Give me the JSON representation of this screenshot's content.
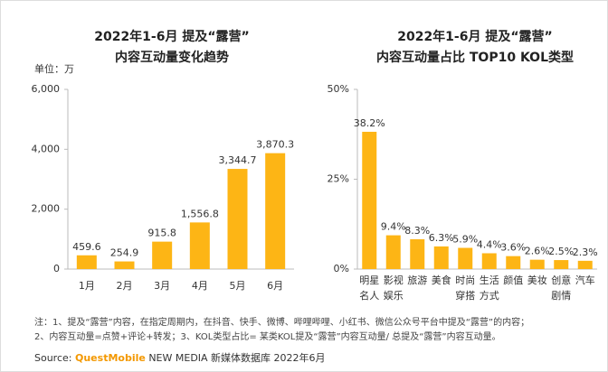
{
  "chart_data": [
    {
      "type": "bar",
      "title": "2022年1-6月 提及“露营”",
      "subtitle": "内容互动量变化趋势",
      "unit_label": "单位：万",
      "categories": [
        "1月",
        "2月",
        "3月",
        "4月",
        "5月",
        "6月"
      ],
      "values": [
        459.6,
        254.9,
        915.8,
        1556.8,
        3344.7,
        3870.3
      ],
      "value_labels": [
        "459.6",
        "254.9",
        "915.8",
        "1,556.8",
        "3,344.7",
        "3,870.3"
      ],
      "color": "#fdb515",
      "ylim": [
        0,
        6000
      ],
      "yticks": [
        0,
        {
          "value": 2000,
          "label": "2,000"
        },
        {
          "value": 4000,
          "label": "4,000"
        },
        {
          "value": 6000,
          "label": "6,000"
        }
      ]
    },
    {
      "type": "bar",
      "title": "2022年1-6月 提及“露营”",
      "subtitle": "内容互动量占比 TOP10 KOL类型",
      "categories": [
        "明星名人",
        "影视娱乐",
        "旅游",
        "美食",
        "时尚穿搭",
        "生活方式",
        "颜值",
        "美妆",
        "创意剧情",
        "汽车"
      ],
      "values": [
        38.2,
        9.4,
        8.3,
        6.3,
        5.9,
        4.4,
        3.6,
        2.6,
        2.5,
        2.3
      ],
      "value_labels": [
        "38.2%",
        "9.4%",
        "8.3%",
        "6.3%",
        "5.9%",
        "4.4%",
        "3.6%",
        "2.6%",
        "2.5%",
        "2.3%"
      ],
      "color": "#fdb515",
      "ylim": [
        0,
        50
      ],
      "yticks": [
        {
          "value": 0,
          "label": "0%"
        },
        {
          "value": 25,
          "label": "25%"
        },
        {
          "value": 50,
          "label": "50%"
        }
      ]
    }
  ],
  "notes": [
    "注：1、提及“露营”内容，在指定周期内，在抖音、快手、微博、哔哩哔哩、小红书、微信公众号平台中提及“露营”的内容；",
    "2、内容互动量=点赞+评论+转发；3、KOL类型占比= 某类KOL提及“露营”内容互动量/ 总提及“露营”内容互动量。"
  ],
  "source": {
    "label": "Source:",
    "brand": "QuestMobile",
    "text": "NEW MEDIA 新媒体数据库 2022年6月"
  }
}
